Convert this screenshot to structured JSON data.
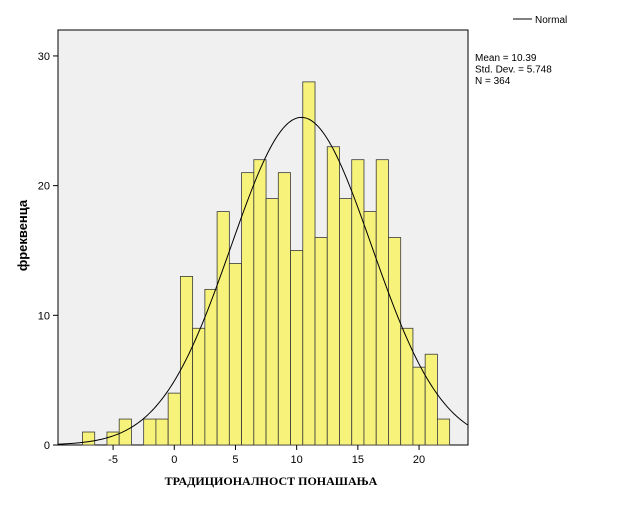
{
  "chart_data": {
    "type": "bar",
    "title": "",
    "xlabel": "ТРАДИЦИОНАЛНОСТ ПОНАШАЊА",
    "ylabel": "фреквенца",
    "xlim": [
      -9.5,
      24
    ],
    "ylim": [
      0,
      32
    ],
    "x_ticks": [
      -5,
      0,
      5,
      10,
      15,
      20
    ],
    "y_ticks": [
      0,
      10,
      20,
      30
    ],
    "bin_width": 1,
    "bins": [
      {
        "x": -7,
        "count": 1
      },
      {
        "x": -6,
        "count": 0
      },
      {
        "x": -5,
        "count": 1
      },
      {
        "x": -4,
        "count": 2
      },
      {
        "x": -3,
        "count": 0
      },
      {
        "x": -2,
        "count": 2
      },
      {
        "x": -1,
        "count": 2
      },
      {
        "x": 0,
        "count": 4
      },
      {
        "x": 1,
        "count": 13
      },
      {
        "x": 2,
        "count": 9
      },
      {
        "x": 3,
        "count": 12
      },
      {
        "x": 4,
        "count": 18
      },
      {
        "x": 5,
        "count": 14
      },
      {
        "x": 6,
        "count": 21
      },
      {
        "x": 7,
        "count": 22
      },
      {
        "x": 8,
        "count": 19
      },
      {
        "x": 9,
        "count": 21
      },
      {
        "x": 10,
        "count": 15
      },
      {
        "x": 11,
        "count": 28
      },
      {
        "x": 12,
        "count": 16
      },
      {
        "x": 13,
        "count": 23
      },
      {
        "x": 14,
        "count": 19
      },
      {
        "x": 15,
        "count": 22
      },
      {
        "x": 16,
        "count": 18
      },
      {
        "x": 17,
        "count": 22
      },
      {
        "x": 18,
        "count": 16
      },
      {
        "x": 19,
        "count": 9
      },
      {
        "x": 20,
        "count": 6
      },
      {
        "x": 21,
        "count": 7
      },
      {
        "x": 22,
        "count": 2
      }
    ],
    "normal_curve": {
      "mean": 10.39,
      "sd": 5.748,
      "n": 364
    },
    "stats": [
      "Mean = 10.39",
      "Std. Dev. = 5.748",
      "N = 364"
    ],
    "legend": {
      "label": "Normal",
      "placement": "top-right"
    },
    "grid": false,
    "colors": {
      "bar_fill": "#f7f37a",
      "bar_stroke": "#3a3a3a",
      "plot_bg": "#f0f0f0",
      "curve": "#000000"
    }
  }
}
